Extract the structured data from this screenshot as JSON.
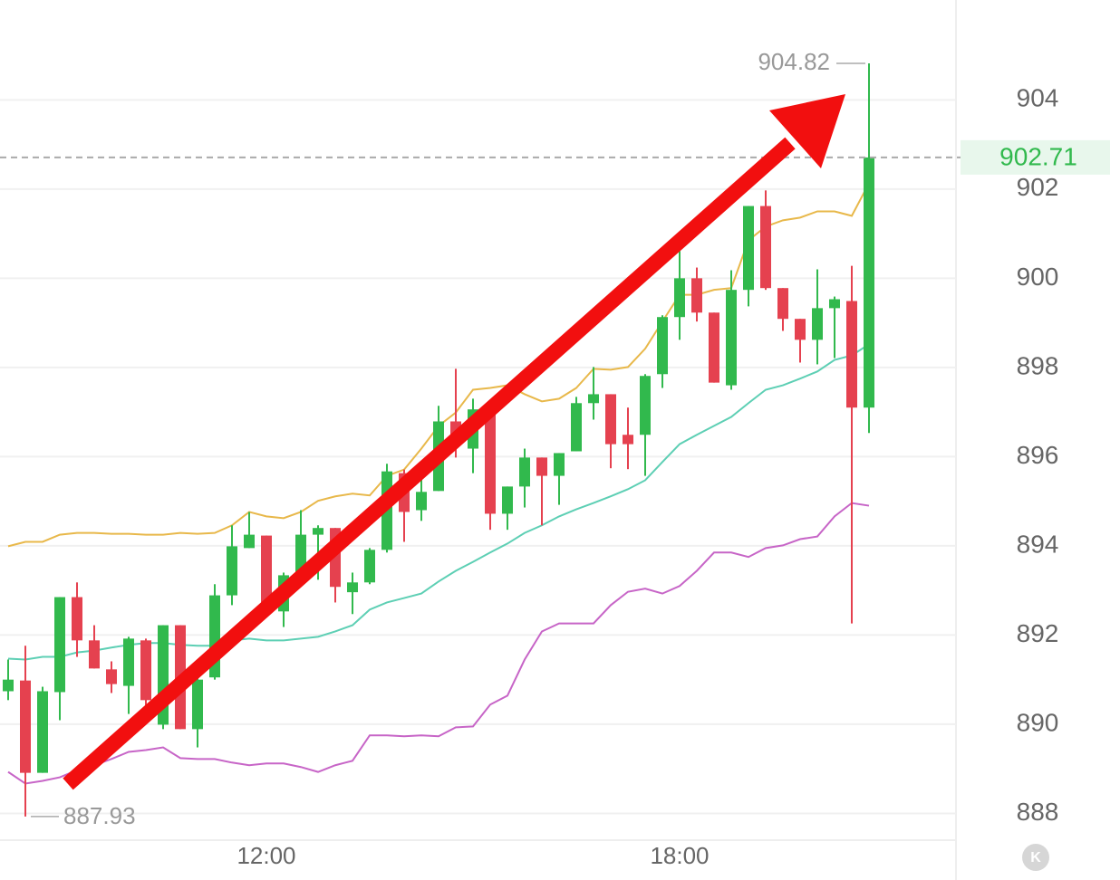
{
  "chart_data": {
    "type": "candlestick",
    "categories": [
      null,
      null,
      null,
      null,
      null,
      null,
      null,
      null,
      null,
      null,
      null,
      null,
      null,
      null,
      null,
      "12:00",
      null,
      null,
      null,
      null,
      null,
      null,
      null,
      null,
      null,
      null,
      null,
      null,
      null,
      null,
      null,
      null,
      null,
      null,
      null,
      null,
      null,
      null,
      null,
      "18:00",
      null,
      null,
      null,
      null,
      null,
      null,
      null,
      null,
      null,
      null,
      null
    ],
    "up_color": "#31b94d",
    "down_color": "#e5414f",
    "open": [
      890.74,
      890.98,
      888.91,
      890.72,
      892.85,
      891.88,
      891.23,
      890.86,
      891.88,
      889.99,
      892.22,
      889.89,
      891.05,
      892.89,
      893.95,
      894.23,
      892.53,
      893.34,
      894.25,
      894.4,
      892.96,
      893.18,
      893.91,
      895.63,
      894.8,
      895.23,
      896.79,
      896.18,
      896.95,
      894.72,
      895.33,
      895.98,
      895.57,
      896.12,
      897.2,
      897.4,
      896.49,
      896.49,
      897.85,
      899.13,
      900.0,
      899.23,
      897.6,
      899.74,
      901.62,
      899.78,
      899.09,
      898.62,
      899.33,
      899.49,
      897.1
    ],
    "high": [
      891.45,
      891.76,
      890.84,
      892.85,
      893.18,
      892.22,
      891.41,
      891.96,
      891.92,
      892.22,
      892.22,
      891.21,
      893.14,
      894.46,
      894.76,
      894.23,
      893.4,
      894.8,
      894.46,
      894.4,
      893.4,
      893.95,
      895.84,
      895.71,
      895.71,
      897.14,
      897.97,
      897.3,
      896.95,
      895.33,
      896.18,
      895.98,
      896.08,
      897.34,
      898.01,
      897.4,
      897.1,
      897.85,
      899.17,
      900.61,
      900.24,
      899.23,
      900.18,
      901.62,
      901.97,
      899.78,
      899.09,
      900.2,
      899.59,
      900.28,
      904.82
    ],
    "low": [
      890.54,
      887.93,
      888.91,
      890.09,
      891.51,
      891.25,
      890.7,
      890.23,
      890.19,
      889.89,
      889.89,
      889.48,
      891.0,
      892.67,
      893.95,
      892.43,
      892.18,
      893.24,
      893.24,
      892.73,
      892.47,
      893.14,
      893.85,
      894.09,
      894.56,
      895.23,
      895.98,
      895.63,
      894.36,
      894.36,
      894.86,
      894.46,
      894.92,
      896.12,
      896.83,
      895.74,
      895.72,
      895.57,
      897.54,
      898.62,
      899.03,
      897.66,
      897.5,
      899.37,
      899.74,
      898.82,
      898.11,
      898.07,
      898.21,
      892.26,
      896.53
    ],
    "close": [
      891.0,
      888.91,
      890.74,
      892.85,
      891.88,
      891.25,
      890.9,
      891.92,
      890.54,
      892.22,
      889.89,
      891.0,
      892.89,
      893.99,
      894.25,
      892.73,
      893.34,
      894.25,
      894.4,
      893.08,
      893.18,
      893.91,
      895.67,
      894.76,
      895.21,
      896.79,
      896.39,
      897.06,
      894.72,
      895.33,
      895.98,
      895.57,
      896.08,
      897.2,
      897.4,
      896.28,
      896.28,
      897.81,
      899.13,
      900.0,
      899.23,
      897.66,
      899.74,
      901.62,
      899.78,
      899.09,
      898.62,
      899.33,
      899.53,
      897.1,
      902.71
    ],
    "lines": [
      {
        "color": "#e8b84a",
        "values": [
          893.99,
          894.09,
          894.09,
          894.25,
          894.29,
          894.29,
          894.27,
          894.27,
          894.25,
          894.25,
          894.29,
          894.27,
          894.29,
          894.46,
          894.76,
          894.66,
          894.62,
          894.76,
          895.01,
          895.11,
          895.17,
          895.13,
          895.57,
          895.71,
          896.18,
          896.69,
          896.99,
          897.5,
          897.54,
          897.6,
          897.4,
          897.24,
          897.3,
          897.54,
          897.97,
          897.95,
          898.01,
          898.42,
          899.03,
          899.63,
          899.63,
          899.74,
          899.78,
          900.85,
          901.16,
          901.3,
          901.36,
          901.5,
          901.5,
          901.4,
          902.13
        ]
      },
      {
        "color": "#5dcfb4",
        "values": [
          891.47,
          891.45,
          891.51,
          891.51,
          891.61,
          891.65,
          891.72,
          891.78,
          891.82,
          891.82,
          891.78,
          891.76,
          891.76,
          891.88,
          891.92,
          891.88,
          891.88,
          891.92,
          891.96,
          892.08,
          892.22,
          892.57,
          892.73,
          892.83,
          892.93,
          893.2,
          893.44,
          893.64,
          893.85,
          894.05,
          894.29,
          894.46,
          894.66,
          894.82,
          894.96,
          895.11,
          895.27,
          895.47,
          895.88,
          896.28,
          896.49,
          896.69,
          896.89,
          897.2,
          897.5,
          897.6,
          897.75,
          897.91,
          898.17,
          898.27,
          898.52
        ]
      },
      {
        "color": "#c765c7",
        "values": [
          888.93,
          888.67,
          888.73,
          888.81,
          888.97,
          889.08,
          889.22,
          889.38,
          889.42,
          889.48,
          889.24,
          889.22,
          889.22,
          889.14,
          889.08,
          889.12,
          889.12,
          889.04,
          888.93,
          889.08,
          889.18,
          889.75,
          889.75,
          889.73,
          889.75,
          889.73,
          889.93,
          889.95,
          890.44,
          890.64,
          891.45,
          892.08,
          892.26,
          892.26,
          892.26,
          892.67,
          892.97,
          893.04,
          892.93,
          893.1,
          893.44,
          893.85,
          893.85,
          893.75,
          893.95,
          894.01,
          894.15,
          894.21,
          894.66,
          894.96,
          894.9
        ]
      }
    ],
    "ylim": [
      887.4,
      906.24
    ],
    "yticks": [
      888,
      890,
      892,
      894,
      896,
      898,
      900,
      902,
      904
    ],
    "grid": true
  },
  "k_button": "K"
}
